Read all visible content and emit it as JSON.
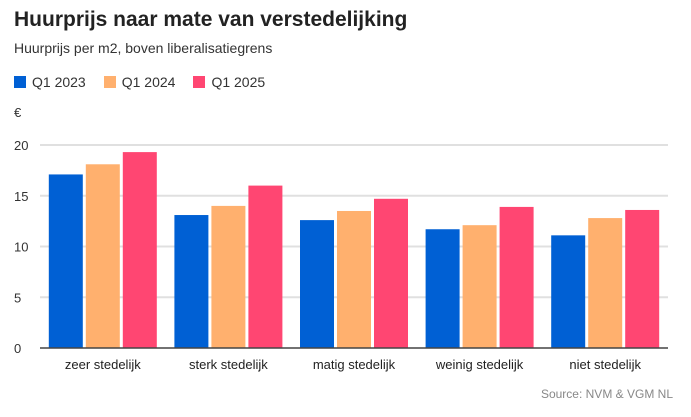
{
  "chart_data": {
    "type": "bar",
    "title": "Huurprijs naar mate van verstedelijking",
    "subtitle": "Huurprijs per m2, boven liberalisatiegrens",
    "ylabel": "€",
    "ylim": [
      0,
      20
    ],
    "yticks": [
      "0",
      "5",
      "10",
      "15",
      "20"
    ],
    "grid": true,
    "legend_position": "top-left",
    "categories": [
      "zeer stedelijk",
      "sterk stedelijk",
      "matig stedelijk",
      "weinig stedelijk",
      "niet stedelijk"
    ],
    "series": [
      {
        "name": "Q1 2023",
        "color": "#0060d4",
        "values": [
          17.1,
          13.1,
          12.6,
          11.7,
          11.1
        ]
      },
      {
        "name": "Q1 2024",
        "color": "#ffb06e",
        "values": [
          18.1,
          14.0,
          13.5,
          12.1,
          12.8
        ]
      },
      {
        "name": "Q1 2025",
        "color": "#ff4672",
        "values": [
          19.3,
          16.0,
          14.7,
          13.9,
          13.6
        ]
      }
    ],
    "source": "Source: NVM & VGM NL"
  }
}
